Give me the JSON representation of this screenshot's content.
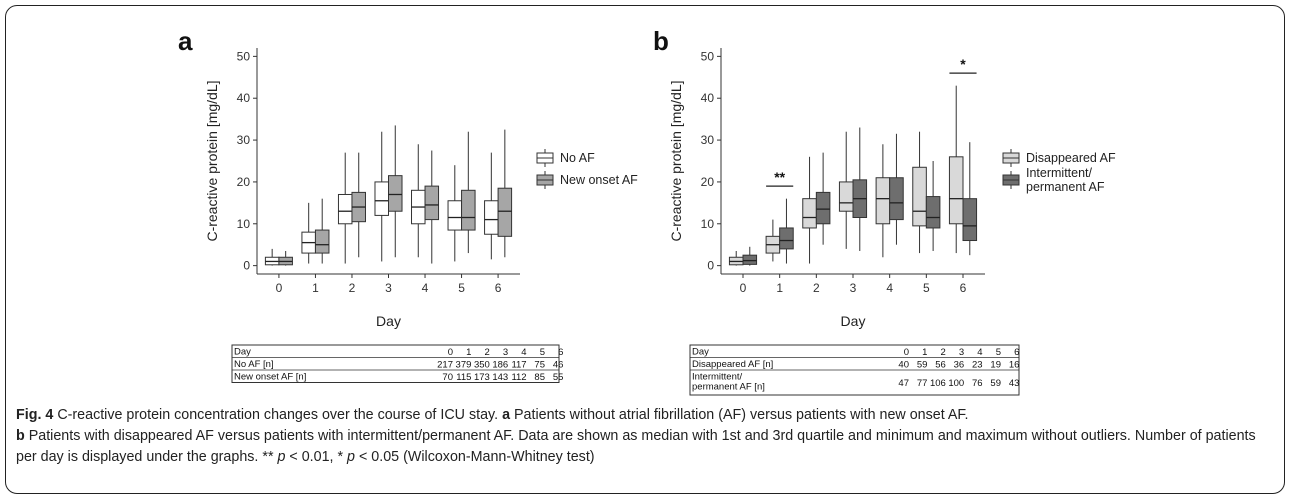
{
  "caption": {
    "fig_label": "Fig. 4",
    "text1": " C-reactive protein concentration changes over the course of ICU stay. ",
    "a_label": "a",
    "text2": " Patients without atrial fibrillation (AF) versus patients with new onset AF.",
    "b_label": "b",
    "text3": " Patients with disappeared AF versus patients with intermittent/permanent AF. Data are shown as median with 1st and 3rd quartile and minimum and maximum without outliers. Number of patients per day is displayed under the graphs. ** ",
    "p": "p",
    "text4": " < 0.01, * ",
    "text5": " < 0.05 (Wilcoxon-Mann-Whitney test)"
  },
  "chart_data": [
    {
      "type": "boxplot",
      "panel": "a",
      "xlabel": "Day",
      "ylabel": "C-reactive protein [mg/dL]",
      "ylim": [
        -2,
        52
      ],
      "yticks": [
        0,
        10,
        20,
        30,
        40,
        50
      ],
      "categories": [
        "0",
        "1",
        "2",
        "3",
        "4",
        "5",
        "6"
      ],
      "legend_position": "right",
      "series": [
        {
          "name": "No AF",
          "color": "#ffffff",
          "boxes": [
            {
              "min": 0,
              "q1": 0.2,
              "median": 1.0,
              "q3": 2.0,
              "max": 4.0
            },
            {
              "min": 0.5,
              "q1": 3.0,
              "median": 5.5,
              "q3": 8.0,
              "max": 15.0
            },
            {
              "min": 0.5,
              "q1": 10.0,
              "median": 13.0,
              "q3": 17.0,
              "max": 27.0
            },
            {
              "min": 1.0,
              "q1": 12.0,
              "median": 15.5,
              "q3": 20.0,
              "max": 32.0
            },
            {
              "min": 2.0,
              "q1": 10.0,
              "median": 14.0,
              "q3": 18.0,
              "max": 29.0
            },
            {
              "min": 1.0,
              "q1": 8.5,
              "median": 11.5,
              "q3": 15.5,
              "max": 24.0
            },
            {
              "min": 1.5,
              "q1": 7.5,
              "median": 11.0,
              "q3": 15.5,
              "max": 27.0
            }
          ]
        },
        {
          "name": "New onset AF",
          "color": "#a6a6a6",
          "boxes": [
            {
              "min": 0,
              "q1": 0.2,
              "median": 1.0,
              "q3": 2.0,
              "max": 3.5
            },
            {
              "min": 0.5,
              "q1": 3.0,
              "median": 5.0,
              "q3": 8.5,
              "max": 16.0
            },
            {
              "min": 2.0,
              "q1": 10.5,
              "median": 14.0,
              "q3": 17.5,
              "max": 27.0
            },
            {
              "min": 2.0,
              "q1": 13.0,
              "median": 17.0,
              "q3": 21.5,
              "max": 33.5
            },
            {
              "min": 0.5,
              "q1": 11.0,
              "median": 14.5,
              "q3": 19.0,
              "max": 27.5
            },
            {
              "min": 3.0,
              "q1": 8.5,
              "median": 11.5,
              "q3": 18.0,
              "max": 32.0
            },
            {
              "min": 2.0,
              "q1": 7.0,
              "median": 13.0,
              "q3": 18.5,
              "max": 32.5
            }
          ]
        }
      ],
      "table": {
        "header": [
          "Day",
          "0",
          "1",
          "2",
          "3",
          "4",
          "5",
          "6"
        ],
        "rows": [
          [
            "No AF [n]",
            "217",
            "379",
            "350",
            "186",
            "117",
            "75",
            "46"
          ],
          [
            "New onset AF [n]",
            "70",
            "115",
            "173",
            "143",
            "112",
            "85",
            "55"
          ]
        ]
      }
    },
    {
      "type": "boxplot",
      "panel": "b",
      "xlabel": "Day",
      "ylabel": "C-reactive protein [mg/dL]",
      "ylim": [
        -2,
        52
      ],
      "yticks": [
        0,
        10,
        20,
        30,
        40,
        50
      ],
      "categories": [
        "0",
        "1",
        "2",
        "3",
        "4",
        "5",
        "6"
      ],
      "legend_position": "right",
      "series": [
        {
          "name": "Disappeared AF",
          "color": "#d9d9d9",
          "boxes": [
            {
              "min": 0,
              "q1": 0.2,
              "median": 1.0,
              "q3": 2.0,
              "max": 3.5
            },
            {
              "min": 1.0,
              "q1": 3.0,
              "median": 5.0,
              "q3": 7.0,
              "max": 11.0
            },
            {
              "min": 0.5,
              "q1": 9.0,
              "median": 11.5,
              "q3": 16.0,
              "max": 26.0
            },
            {
              "min": 4.0,
              "q1": 13.0,
              "median": 15.0,
              "q3": 20.0,
              "max": 32.0
            },
            {
              "min": 2.0,
              "q1": 10.0,
              "median": 16.0,
              "q3": 21.0,
              "max": 29.0
            },
            {
              "min": 3.0,
              "q1": 9.5,
              "median": 13.0,
              "q3": 23.5,
              "max": 32.0
            },
            {
              "min": 3.0,
              "q1": 10.0,
              "median": 16.0,
              "q3": 26.0,
              "max": 43.0
            }
          ]
        },
        {
          "name": "Intermittent/\npermanent AF",
          "color": "#6e6e6e",
          "boxes": [
            {
              "min": 0,
              "q1": 0.3,
              "median": 1.2,
              "q3": 2.5,
              "max": 4.5
            },
            {
              "min": 0.5,
              "q1": 4.0,
              "median": 6.0,
              "q3": 9.0,
              "max": 16.0
            },
            {
              "min": 5.0,
              "q1": 10.0,
              "median": 13.5,
              "q3": 17.5,
              "max": 27.0
            },
            {
              "min": 3.5,
              "q1": 11.5,
              "median": 16.0,
              "q3": 20.5,
              "max": 33.0
            },
            {
              "min": 5.0,
              "q1": 11.0,
              "median": 15.0,
              "q3": 21.0,
              "max": 31.5
            },
            {
              "min": 3.5,
              "q1": 9.0,
              "median": 11.5,
              "q3": 16.5,
              "max": 25.0
            },
            {
              "min": 2.5,
              "q1": 6.0,
              "median": 9.5,
              "q3": 16.0,
              "max": 29.5
            }
          ]
        }
      ],
      "significance": [
        {
          "day": "1",
          "label": "**",
          "y": 19
        },
        {
          "day": "6",
          "label": "*",
          "y": 46
        }
      ],
      "table": {
        "header": [
          "Day",
          "0",
          "1",
          "2",
          "3",
          "4",
          "5",
          "6"
        ],
        "rows": [
          [
            "Disappeared AF [n]",
            "40",
            "59",
            "56",
            "36",
            "23",
            "19",
            "16"
          ],
          [
            "Intermittent/\npermanent AF [n]",
            "47",
            "77",
            "106",
            "100",
            "76",
            "59",
            "43"
          ]
        ]
      }
    }
  ]
}
